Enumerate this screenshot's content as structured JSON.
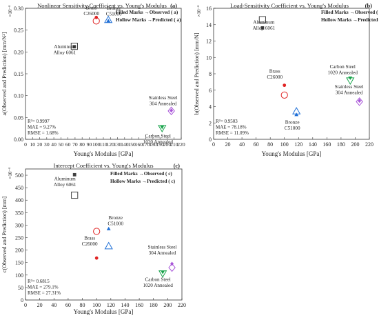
{
  "colors": {
    "aluminum": "#404040",
    "brass": "#e02424",
    "bronze": "#1f6fd6",
    "carbon_steel": "#17a34a",
    "stainless_steel": "#a855d8"
  },
  "charts": [
    {
      "panel": "(a)",
      "type": "scatter",
      "title": "Nonlinear Sensitivity Coefficient vs. Young's Modulus",
      "xlabel": "Young's Modulus [GPa]",
      "ylabel": "a(Observed and Prediction) [mm/N²]",
      "yexp": "×10⁻⁶",
      "xlim": [
        0,
        220
      ],
      "ylim": [
        0,
        0.3
      ],
      "xticks": [
        "0",
        "10",
        "20",
        "30",
        "40",
        "50",
        "60",
        "70",
        "80",
        "90",
        "100",
        "110",
        "120",
        "130",
        "140",
        "150",
        "160",
        "170",
        "180",
        "190",
        "200",
        "210",
        "220"
      ],
      "yticks": [
        "0.00",
        "0.05",
        "0.10",
        "0.15",
        "0.20",
        "0.25",
        "0.30"
      ],
      "legend": [
        "Filled Marks →Observed ( a)",
        "Hollow Marks →Predicted ( a)"
      ],
      "stats": [
        "R²= 0.9997",
        "MAE = 9.27%",
        "RMSE = 1.68%"
      ],
      "materials": [
        {
          "label": [
            "Aluminum",
            "Alloy 6061"
          ],
          "x": 69,
          "observed": 0.212,
          "predicted": 0.213
        },
        {
          "label": [
            "Brass",
            "C26000"
          ],
          "x": 100,
          "observed": 0.279,
          "predicted": 0.271
        },
        {
          "label": [
            "Bronze",
            "C51000"
          ],
          "x": 117,
          "observed": 0.271,
          "predicted": 0.273
        },
        {
          "label": [
            "Carbon Steel",
            "1020 Annealed"
          ],
          "x": 193,
          "observed": 0.028,
          "predicted": 0.026
        },
        {
          "label": [
            "Stainless Steel",
            "304 Annealed"
          ],
          "x": 206,
          "observed": 0.066,
          "predicted": 0.065
        }
      ]
    },
    {
      "panel": "(b)",
      "type": "scatter",
      "title": "Load-Sensitivity Coefficient vs. Young's Modulus",
      "xlabel": "Young's Modulus [GPa]",
      "ylabel": "b(Observed and Prediction) [mm/N]",
      "yexp": "×10⁻⁶",
      "xlim": [
        0,
        220
      ],
      "ylim": [
        0,
        16
      ],
      "xticks": [
        "0",
        "20",
        "40",
        "60",
        "80",
        "100",
        "120",
        "140",
        "160",
        "180",
        "200",
        "220"
      ],
      "yticks": [
        "0",
        "2",
        "4",
        "6",
        "8",
        "10",
        "12",
        "14",
        "16"
      ],
      "legend": [
        "Filled Marks →Observed ( b)",
        "Hollow Marks →Predicted ( b)"
      ],
      "stats": [
        "R²= 0.9503",
        "MAE = 78.18%",
        "RMSE = 11.09%"
      ],
      "materials": [
        {
          "label": [
            "Aluminum",
            "Alloy 6061"
          ],
          "x": 69,
          "observed": 13.6,
          "predicted": 14.6
        },
        {
          "label": [
            "Brass",
            "C26000"
          ],
          "x": 100,
          "observed": 6.6,
          "predicted": 5.4
        },
        {
          "label": [
            "Bronze",
            "C51000"
          ],
          "x": 117,
          "observed": 3.0,
          "predicted": 3.4
        },
        {
          "label": [
            "Carbon Steel",
            "1020 Annealed"
          ],
          "x": 193,
          "observed": 7.5,
          "predicted": 7.2
        },
        {
          "label": [
            "Stainless Steel",
            "304 Annealed"
          ],
          "x": 206,
          "observed": 4.7,
          "predicted": 4.6
        }
      ]
    },
    {
      "panel": "(c)",
      "type": "scatter",
      "title": "Intercept Coefficient vs. Young's Modulus",
      "xlabel": "Young's Modulus [GPa]",
      "ylabel": "c(Observed and Prediction) [mm]",
      "yexp": "×10⁻⁶",
      "xlim": [
        0,
        220
      ],
      "ylim": [
        0,
        525
      ],
      "xticks": [
        "0",
        "20",
        "40",
        "60",
        "80",
        "100",
        "120",
        "140",
        "160",
        "180",
        "200",
        "220"
      ],
      "yticks": [
        "0",
        "50",
        "100",
        "150",
        "200",
        "250",
        "300",
        "350",
        "400",
        "450",
        "500"
      ],
      "legend": [
        "Filled Marks →Observed ( c)",
        "Hollow Marks →Predicted ( c)"
      ],
      "stats": [
        "R²= 0.6815",
        "MAE = 279.1%",
        "RMSE = 27.31%"
      ],
      "materials": [
        {
          "label": [
            "Aluminum",
            "Alloy 6061"
          ],
          "x": 69,
          "observed": 502,
          "predicted": 420
        },
        {
          "label": [
            "Brass",
            "C26000"
          ],
          "x": 100,
          "observed": 168,
          "predicted": 275
        },
        {
          "label": [
            "Bronze",
            "C51000"
          ],
          "x": 117,
          "observed": 285,
          "predicted": 215
        },
        {
          "label": [
            "Carbon Steel",
            "1020 Annealed"
          ],
          "x": 193,
          "observed": 112,
          "predicted": 107
        },
        {
          "label": [
            "Stainless Steel",
            "304 Annealed"
          ],
          "x": 206,
          "observed": 145,
          "predicted": 130
        }
      ]
    }
  ]
}
